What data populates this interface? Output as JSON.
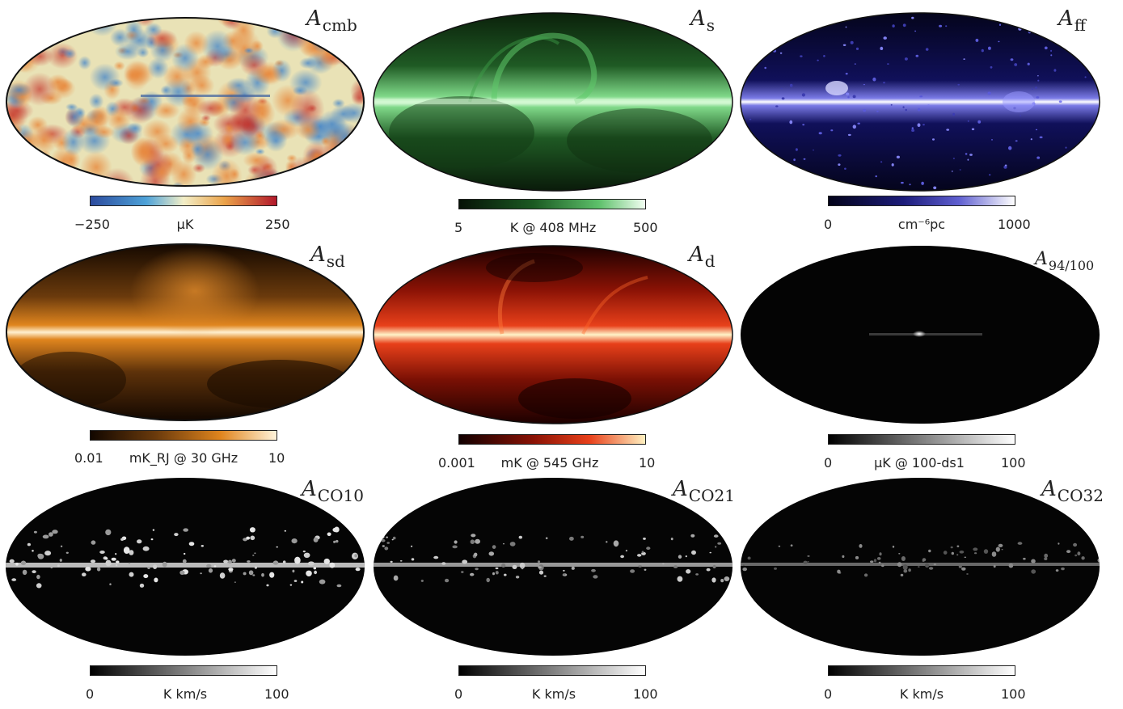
{
  "panels": [
    {
      "title_base": "A",
      "title_sub": "cmb",
      "min": "−250",
      "unit_html": "μK",
      "max": "250",
      "colors": {
        "low": "#2c4b9e",
        "mid": "#f3efc8",
        "high": "#b2182b"
      }
    },
    {
      "title_base": "A",
      "title_sub": "s",
      "min": "5",
      "unit_html": "K @ 408 MHz",
      "max": "500",
      "colors": {
        "low": "#061206",
        "mid": "#2f8a3a",
        "high": "#f2fff2"
      }
    },
    {
      "title_base": "A",
      "title_sub": "ff",
      "min": "0",
      "unit_html": "cm⁻⁶pc",
      "max": "1000",
      "colors": {
        "low": "#03031a",
        "mid": "#3a3ab8",
        "high": "#ffffff"
      }
    },
    {
      "title_base": "A",
      "title_sub": "sd",
      "min": "0.01",
      "unit_html": "mK_RJ @ 30 GHz",
      "max": "10",
      "colors": {
        "low": "#120700",
        "mid": "#d4761a",
        "high": "#fff3da"
      }
    },
    {
      "title_base": "A",
      "title_sub": "d",
      "min": "0.001",
      "unit_html": "mK @ 545 GHz",
      "max": "10",
      "colors": {
        "low": "#120000",
        "mid": "#c01d0a",
        "high": "#fff0c0"
      }
    },
    {
      "title_base": "A",
      "title_sub": "94/100",
      "min": "0",
      "unit_html": "μK @ 100-ds1",
      "max": "100",
      "colors": {
        "low": "#000000",
        "mid": "#777777",
        "high": "#ffffff"
      }
    },
    {
      "title_base": "A",
      "title_sub": "CO10",
      "min": "0",
      "unit_html": "K km/s",
      "max": "100",
      "colors": {
        "low": "#000000",
        "mid": "#777777",
        "high": "#ffffff"
      }
    },
    {
      "title_base": "A",
      "title_sub": "CO21",
      "min": "0",
      "unit_html": "K km/s",
      "max": "100",
      "colors": {
        "low": "#000000",
        "mid": "#777777",
        "high": "#ffffff"
      }
    },
    {
      "title_base": "A",
      "title_sub": "CO32",
      "min": "0",
      "unit_html": "K km/s",
      "max": "100",
      "colors": {
        "low": "#000000",
        "mid": "#777777",
        "high": "#ffffff"
      }
    }
  ]
}
